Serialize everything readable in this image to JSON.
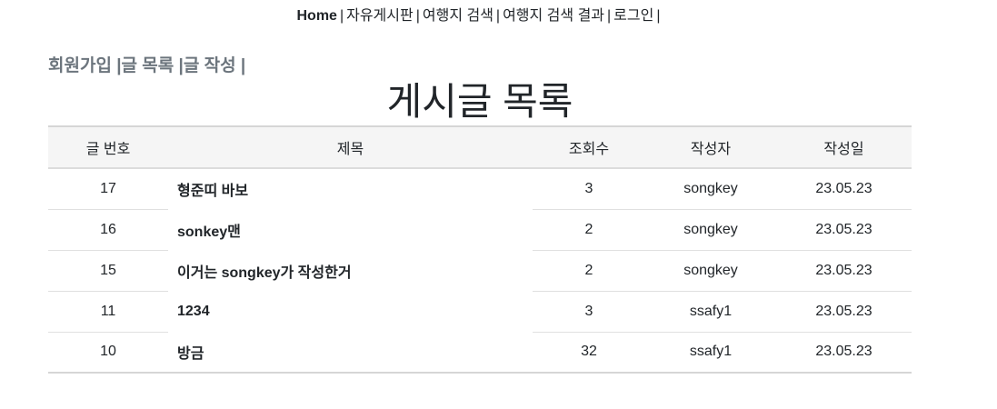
{
  "topnav": {
    "items": [
      {
        "label": "Home"
      },
      {
        "label": "자유게시판"
      },
      {
        "label": "여행지 검색"
      },
      {
        "label": "여행지 검색 결과"
      },
      {
        "label": "로그인"
      }
    ],
    "separator": "|"
  },
  "subnav": {
    "items": [
      {
        "label": "회원가입"
      },
      {
        "label": "글 목록"
      },
      {
        "label": "글 작성"
      }
    ],
    "separator": "|"
  },
  "page": {
    "title": "게시글 목록"
  },
  "table": {
    "headers": {
      "no": "글 번호",
      "title": "제목",
      "views": "조회수",
      "author": "작성자",
      "date": "작성일"
    },
    "rows": [
      {
        "no": "17",
        "title": "형준띠 바보",
        "views": "3",
        "author": "songkey",
        "date": "23.05.23"
      },
      {
        "no": "16",
        "title": "sonkey맨",
        "views": "2",
        "author": "songkey",
        "date": "23.05.23"
      },
      {
        "no": "15",
        "title": "이거는 songkey가 작성한거",
        "views": "2",
        "author": "songkey",
        "date": "23.05.23"
      },
      {
        "no": "11",
        "title": "1234",
        "views": "3",
        "author": "ssafy1",
        "date": "23.05.23"
      },
      {
        "no": "10",
        "title": "방금",
        "views": "32",
        "author": "ssafy1",
        "date": "23.05.23"
      }
    ]
  }
}
